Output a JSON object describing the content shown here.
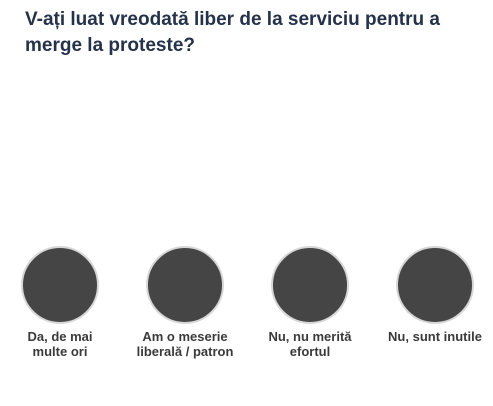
{
  "poll": {
    "question": "V-ați luat vreodată liber de la serviciu pentru a merge la proteste?",
    "circle_color": "#454545",
    "options": [
      {
        "label": "Da, de mai multe ori"
      },
      {
        "label": "Am o meserie liberală / patron"
      },
      {
        "label": "Nu, nu merită efortul"
      },
      {
        "label": "Nu, sunt inutile"
      }
    ]
  }
}
